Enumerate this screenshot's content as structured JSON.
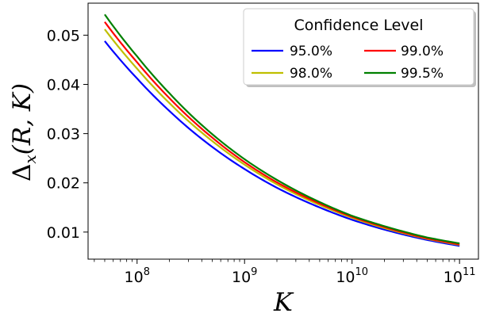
{
  "chart_data": {
    "type": "line",
    "xlabel": "K",
    "ylabel": "Δx(R, K)",
    "ylabel_parts": {
      "symbol": "Δ",
      "subscript": "x",
      "args": "(R, K)"
    },
    "xscale": "log",
    "xlim": [
      35000000,
      150000000000
    ],
    "ylim": [
      0.0045,
      0.0565
    ],
    "xticks": [
      {
        "value": 100000000,
        "base": "10",
        "exp": "8"
      },
      {
        "value": 1000000000,
        "base": "10",
        "exp": "9"
      },
      {
        "value": 10000000000,
        "base": "10",
        "exp": "10"
      },
      {
        "value": 100000000000,
        "base": "10",
        "exp": "11"
      }
    ],
    "yticks": [
      {
        "value": 0.01,
        "label": "0.01"
      },
      {
        "value": 0.02,
        "label": "0.02"
      },
      {
        "value": 0.03,
        "label": "0.03"
      },
      {
        "value": 0.04,
        "label": "0.04"
      },
      {
        "value": 0.05,
        "label": "0.05"
      }
    ],
    "grid": false,
    "legend": {
      "title": "Confidence Level",
      "position": "top-right",
      "columns": 2
    },
    "x": [
      50000000,
      100000000,
      200000000,
      500000000,
      1000000000,
      2000000000,
      5000000000,
      10000000000,
      20000000000,
      50000000000,
      100000000000
    ],
    "series": [
      {
        "name": "95.0%",
        "color": "#0000ff",
        "values": [
          0.0488,
          0.0412,
          0.0346,
          0.0273,
          0.0228,
          0.019,
          0.015,
          0.0125,
          0.0105,
          0.0084,
          0.0072
        ]
      },
      {
        "name": "98.0%",
        "color": "#bfbf00",
        "values": [
          0.0512,
          0.0432,
          0.0362,
          0.0285,
          0.0237,
          0.0197,
          0.0155,
          0.0129,
          0.0108,
          0.0086,
          0.0074
        ]
      },
      {
        "name": "99.0%",
        "color": "#ff0000",
        "values": [
          0.0527,
          0.0445,
          0.0372,
          0.0292,
          0.0242,
          0.0201,
          0.0158,
          0.0131,
          0.011,
          0.0087,
          0.0075
        ]
      },
      {
        "name": "99.5%",
        "color": "#008000",
        "values": [
          0.0542,
          0.0457,
          0.0382,
          0.0299,
          0.0248,
          0.0206,
          0.0161,
          0.0133,
          0.0112,
          0.0089,
          0.0077
        ]
      }
    ]
  }
}
